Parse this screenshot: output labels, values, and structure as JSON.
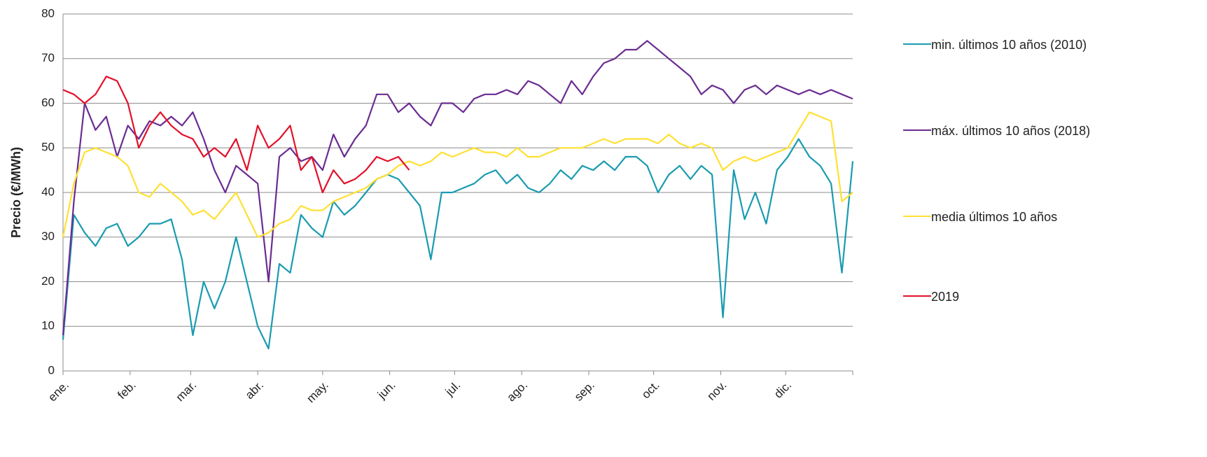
{
  "chart_data": {
    "type": "line",
    "ylabel": "Precio (€/MWh)",
    "x": [
      0,
      5,
      10,
      15,
      20,
      25,
      30,
      35,
      40,
      45,
      50,
      55,
      60,
      65,
      70,
      75,
      80,
      85,
      90,
      95,
      100,
      105,
      110,
      115,
      120,
      125,
      130,
      135,
      140,
      145,
      150,
      155,
      160,
      165,
      170,
      175,
      180,
      185,
      190,
      195,
      200,
      205,
      210,
      215,
      220,
      225,
      230,
      235,
      240,
      245,
      250,
      255,
      260,
      265,
      270,
      275,
      280,
      285,
      290,
      295,
      300,
      305,
      310,
      315,
      320,
      325,
      330,
      335,
      340,
      345,
      350,
      355,
      360,
      365
    ],
    "xlim": [
      0,
      365
    ],
    "xticks": [
      {
        "value": 0,
        "label": "ene."
      },
      {
        "value": 31,
        "label": "feb."
      },
      {
        "value": 59,
        "label": "mar."
      },
      {
        "value": 90,
        "label": "abr."
      },
      {
        "value": 120,
        "label": "may."
      },
      {
        "value": 151,
        "label": "jun."
      },
      {
        "value": 181,
        "label": "jul."
      },
      {
        "value": 212,
        "label": "ago."
      },
      {
        "value": 243,
        "label": "sep."
      },
      {
        "value": 273,
        "label": "oct."
      },
      {
        "value": 304,
        "label": "nov."
      },
      {
        "value": 334,
        "label": "dic."
      }
    ],
    "ylim": [
      0,
      80
    ],
    "yticks": [
      0,
      10,
      20,
      30,
      40,
      50,
      60,
      70,
      80
    ],
    "grid": true,
    "legend": "right",
    "series": [
      {
        "name": "min. últimos 10 años (2010)",
        "color": "#1a9bb0",
        "values": [
          7,
          35,
          31,
          28,
          32,
          33,
          28,
          30,
          33,
          33,
          34,
          25,
          8,
          20,
          14,
          20,
          30,
          20,
          10,
          5,
          24,
          22,
          35,
          32,
          30,
          38,
          35,
          37,
          40,
          43,
          44,
          43,
          40,
          37,
          25,
          40,
          40,
          41,
          42,
          44,
          45,
          42,
          44,
          41,
          40,
          42,
          45,
          43,
          46,
          45,
          47,
          45,
          48,
          48,
          46,
          40,
          44,
          46,
          43,
          46,
          44,
          12,
          45,
          34,
          40,
          33,
          45,
          48,
          52,
          48,
          46,
          42,
          22,
          47
        ]
      },
      {
        "name": "máx. últimos 10 años (2018)",
        "color": "#6a2c91",
        "values": [
          8,
          38,
          60,
          54,
          57,
          48,
          55,
          52,
          56,
          55,
          57,
          55,
          58,
          52,
          45,
          40,
          46,
          44,
          42,
          20,
          48,
          50,
          47,
          48,
          45,
          53,
          48,
          52,
          55,
          62,
          62,
          58,
          60,
          57,
          55,
          60,
          60,
          58,
          61,
          62,
          62,
          63,
          62,
          65,
          64,
          62,
          60,
          65,
          62,
          66,
          69,
          70,
          72,
          72,
          74,
          72,
          70,
          68,
          66,
          62,
          64,
          63,
          60,
          63,
          64,
          62,
          64,
          63,
          62,
          63,
          62,
          63,
          62,
          61
        ]
      },
      {
        "name": "media últimos 10 años",
        "color": "#ffe033",
        "values": [
          30,
          42,
          49,
          50,
          49,
          48,
          46,
          40,
          39,
          42,
          40,
          38,
          35,
          36,
          34,
          37,
          40,
          35,
          30,
          31,
          33,
          34,
          37,
          36,
          36,
          38,
          39,
          40,
          41,
          43,
          44,
          46,
          47,
          46,
          47,
          49,
          48,
          49,
          50,
          49,
          49,
          48,
          50,
          48,
          48,
          49,
          50,
          50,
          50,
          51,
          52,
          51,
          52,
          52,
          52,
          51,
          53,
          51,
          50,
          51,
          50,
          45,
          47,
          48,
          47,
          48,
          49,
          50,
          54,
          58,
          57,
          56,
          38,
          40
        ]
      },
      {
        "name": "2019",
        "color": "#e3112a",
        "values": [
          63,
          62,
          60,
          62,
          66,
          65,
          60,
          50,
          55,
          58,
          55,
          53,
          52,
          48,
          50,
          48,
          52,
          45,
          55,
          50,
          52,
          55,
          45,
          48,
          40,
          45,
          42,
          43,
          45,
          48,
          47,
          48,
          45,
          null,
          null,
          null,
          null,
          null,
          null,
          null,
          null,
          null,
          null,
          null,
          null,
          null,
          null,
          null,
          null,
          null,
          null,
          null,
          null,
          null,
          null,
          null,
          null,
          null,
          null,
          null,
          null,
          null,
          null,
          null,
          null,
          null,
          null,
          null,
          null,
          null,
          null,
          null,
          null,
          null
        ]
      }
    ]
  }
}
